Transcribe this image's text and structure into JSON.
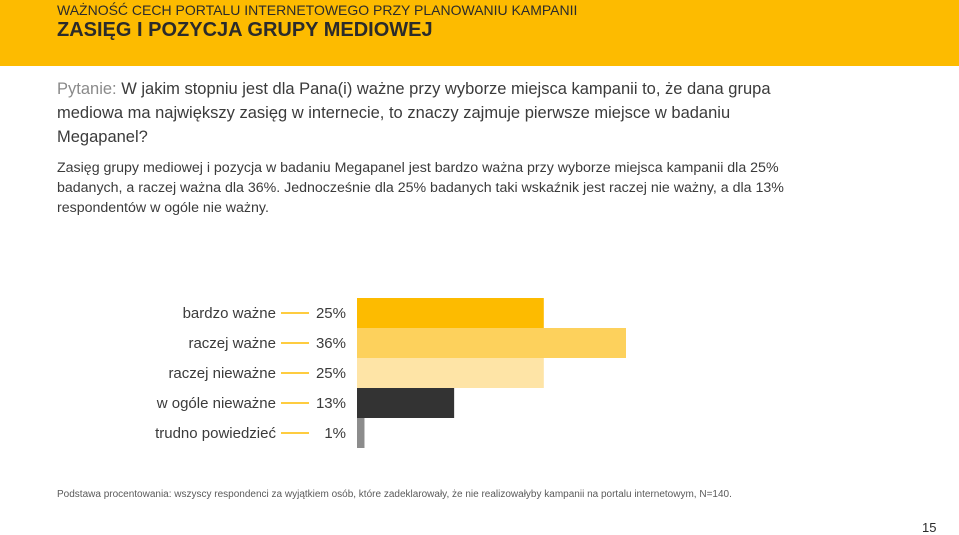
{
  "header": {
    "subtitle": "WAŻNOŚĆ CECH PORTALU INTERNETOWEGO PRZY PLANOWANIU KAMPANII",
    "title": "ZASIĘG I POZYCJA GRUPY MEDIOWEJ"
  },
  "question": {
    "label": "Pytanie:",
    "text": "W jakim stopniu jest dla Pana(i) ważne przy wyborze miejsca kampanii to, że dana grupa mediowa ma największy zasięg w internecie, to znaczy zajmuje pierwsze miejsce w badaniu Megapanel?"
  },
  "summary": "Zasięg grupy mediowej i pozycja w badaniu Megapanel jest bardzo ważna przy wyborze miejsca kampanii dla 25% badanych, a raczej ważna dla 36%. Jednocześnie dla 25% badanych taki wskaźnik jest raczej nie ważny, a dla 13% respondentów w ogóle nie ważny.",
  "chart_data": {
    "type": "bar",
    "orientation": "horizontal",
    "categories": [
      "bardzo ważne",
      "raczej ważne",
      "raczej nieważne",
      "w ogóle nieważne",
      "trudno powiedzieć"
    ],
    "values": [
      25,
      36,
      25,
      13,
      1
    ],
    "value_labels": [
      "25%",
      "36%",
      "25%",
      "13%",
      "1%"
    ],
    "colors": [
      "#FDBB00",
      "#FDD15C",
      "#FEE4A6",
      "#333333",
      "#8C8C8C"
    ],
    "xlim": [
      0,
      100
    ],
    "grid": false,
    "legend": "none"
  },
  "footnote": "Podstawa procentowania: wszyscy respondenci za wyjątkiem osób, które zadeklarowały, że nie realizowałyby kampanii na portalu internetowym, N=140.",
  "page_number": "15"
}
